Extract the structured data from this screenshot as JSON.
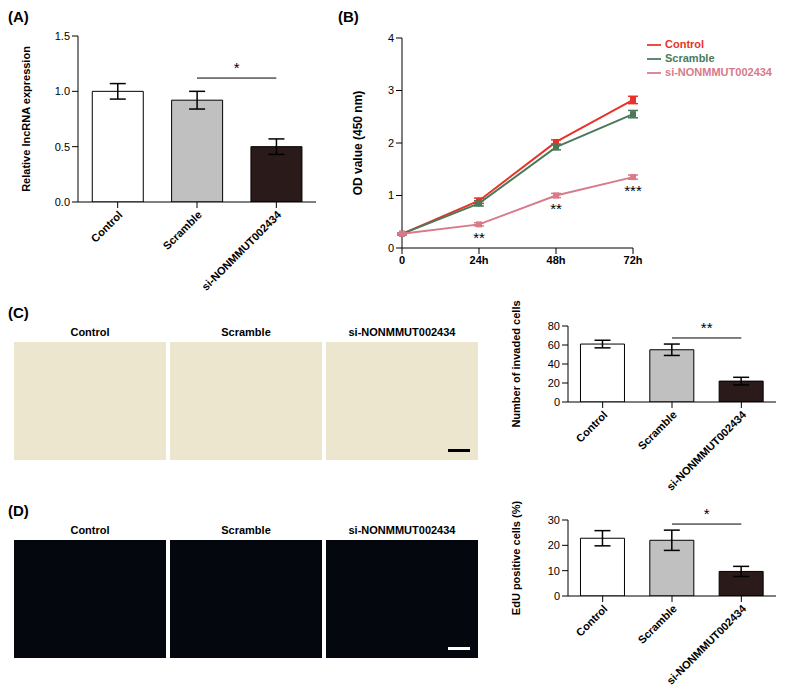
{
  "chart_data": [
    {
      "type": "bar",
      "title": "(A)",
      "y_label": "Relative lncRNA expression",
      "categories": [
        "Control",
        "Scramble",
        "si-NONMMUT002434"
      ],
      "values": [
        1.0,
        0.92,
        0.5
      ],
      "errors": [
        0.07,
        0.08,
        0.07
      ],
      "colors": [
        "#ffffff",
        "#c0c0c0",
        "#2b1a1a"
      ],
      "ylim": [
        0,
        1.5
      ],
      "yticks": [
        {
          "value": 0,
          "label": "0.0"
        },
        {
          "value": 0.5,
          "label": "0.5"
        },
        {
          "value": 1,
          "label": "1.0"
        },
        {
          "value": 1.5,
          "label": "1.5"
        }
      ],
      "grid": false,
      "annotations": [
        {
          "text": "*",
          "categories": [
            "Scramble",
            "si-NONMMUT002434"
          ]
        }
      ]
    },
    {
      "type": "line",
      "title": "(B)",
      "y_label": "OD value (450 nm)",
      "categories": [
        "0",
        "24h",
        "48h",
        "72h"
      ],
      "series": [
        {
          "name": "Control",
          "color": "#e8332b",
          "marker": "square",
          "values": [
            0.27,
            0.9,
            2.02,
            2.82
          ],
          "errors": [
            0.02,
            0.05,
            0.04,
            0.07
          ]
        },
        {
          "name": "Scramble",
          "color": "#4a7a5a",
          "marker": "square",
          "values": [
            0.27,
            0.85,
            1.92,
            2.55
          ],
          "errors": [
            0.02,
            0.05,
            0.05,
            0.07
          ]
        },
        {
          "name": "si-NONMMUT002434",
          "color": "#d87a8a",
          "marker": "square",
          "values": [
            0.27,
            0.45,
            1.0,
            1.35
          ],
          "errors": [
            0.02,
            0.03,
            0.04,
            0.04
          ]
        }
      ],
      "ylim": [
        0,
        4
      ],
      "yticks": [
        0,
        1,
        2,
        3,
        4
      ],
      "grid": false,
      "legend": "upper right",
      "annotations": [
        {
          "text": "**",
          "x": "24h"
        },
        {
          "text": "**",
          "x": "48h"
        },
        {
          "text": "***",
          "x": "72h"
        }
      ]
    },
    {
      "type": "bar",
      "y_label": "Number of invaded cells",
      "categories": [
        "Control",
        "Scramble",
        "si-NONMMUT002434"
      ],
      "values": [
        61,
        55,
        22
      ],
      "errors": [
        4,
        6,
        4
      ],
      "colors": [
        "#ffffff",
        "#c0c0c0",
        "#2b1a1a"
      ],
      "ylim": [
        0,
        80
      ],
      "yticks": [
        0,
        20,
        40,
        60,
        80
      ],
      "grid": false,
      "annotations": [
        {
          "text": "**",
          "categories": [
            "Scramble",
            "si-NONMMUT002434"
          ]
        }
      ]
    },
    {
      "type": "bar",
      "y_label": "EdU positive cells (%)",
      "categories": [
        "Control",
        "Scramble",
        "si-NONMMUT002434"
      ],
      "values": [
        22.8,
        22,
        9.7
      ],
      "errors": [
        3,
        4,
        2
      ],
      "colors": [
        "#ffffff",
        "#c0c0c0",
        "#2b1a1a"
      ],
      "ylim": [
        0,
        30
      ],
      "yticks": [
        0,
        10,
        20,
        30
      ],
      "grid": false,
      "annotations": [
        {
          "text": "*",
          "categories": [
            "Scramble",
            "si-NONMMUT002434"
          ]
        }
      ]
    }
  ],
  "images": [
    {
      "title": "(C)",
      "captions": [
        "Control",
        "Scramble",
        "si-NONMMUT002434"
      ]
    },
    {
      "title": "(D)",
      "captions": [
        "Control",
        "Scramble",
        "si-NONMMUT002434"
      ]
    }
  ]
}
